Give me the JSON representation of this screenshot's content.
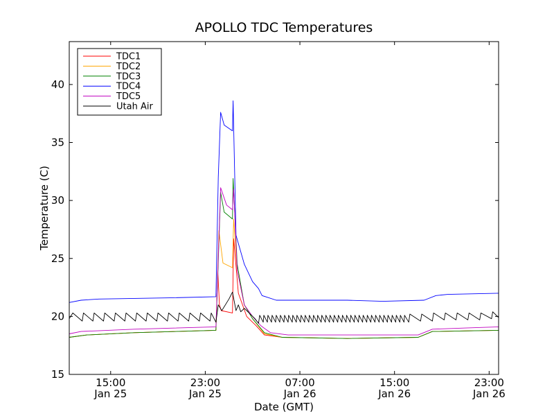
{
  "chart_data": {
    "type": "line",
    "title": "APOLLO TDC Temperatures",
    "xlabel": "Date (GMT)",
    "ylabel": "Temperature (C)",
    "x_units": "hours since Jan 25 00:00 GMT",
    "xlim": [
      11.5,
      47.8
    ],
    "ylim": [
      15,
      43.7
    ],
    "grid": false,
    "legend_position": "top-left",
    "x_ticks": [
      {
        "value": 15,
        "time": "15:00",
        "date": "Jan 25"
      },
      {
        "value": 23,
        "time": "23:00",
        "date": "Jan 25"
      },
      {
        "value": 31,
        "time": "07:00",
        "date": "Jan 26"
      },
      {
        "value": 39,
        "time": "15:00",
        "date": "Jan 26"
      },
      {
        "value": 47,
        "time": "23:00",
        "date": "Jan 26"
      }
    ],
    "y_ticks": [
      15,
      20,
      25,
      30,
      35,
      40
    ],
    "series": [
      {
        "name": "TDC1",
        "color": "#ff0000",
        "points": [
          [
            11.5,
            18.2
          ],
          [
            13,
            18.4
          ],
          [
            17,
            18.6
          ],
          [
            23.9,
            18.8
          ],
          [
            24.05,
            24.0
          ],
          [
            24.2,
            21.0
          ],
          [
            24.35,
            20.5
          ],
          [
            25.3,
            20.3
          ],
          [
            25.4,
            26.7
          ],
          [
            25.8,
            22.0
          ],
          [
            26.5,
            20.0
          ],
          [
            27.3,
            19.2
          ],
          [
            28,
            18.4
          ],
          [
            29.5,
            18.2
          ],
          [
            35,
            18.1
          ],
          [
            41,
            18.2
          ],
          [
            42.2,
            18.7
          ],
          [
            47.8,
            18.8
          ]
        ]
      },
      {
        "name": "TDC2",
        "color": "#ffa500",
        "points": [
          [
            11.5,
            18.2
          ],
          [
            13,
            18.4
          ],
          [
            17,
            18.6
          ],
          [
            23.9,
            18.8
          ],
          [
            24.15,
            27.4
          ],
          [
            24.5,
            24.6
          ],
          [
            25.3,
            24.2
          ],
          [
            25.4,
            28.4
          ],
          [
            25.7,
            24.0
          ],
          [
            26.3,
            21.0
          ],
          [
            27,
            19.8
          ],
          [
            28,
            18.5
          ],
          [
            29.5,
            18.2
          ],
          [
            35,
            18.1
          ],
          [
            41,
            18.2
          ],
          [
            42.2,
            18.7
          ],
          [
            47.8,
            18.8
          ]
        ]
      },
      {
        "name": "TDC3",
        "color": "#008000",
        "points": [
          [
            11.5,
            18.2
          ],
          [
            13,
            18.4
          ],
          [
            17,
            18.6
          ],
          [
            23.9,
            18.8
          ],
          [
            24.3,
            30.7
          ],
          [
            24.6,
            29.0
          ],
          [
            25.3,
            28.4
          ],
          [
            25.35,
            31.9
          ],
          [
            25.7,
            24.5
          ],
          [
            26.3,
            21.0
          ],
          [
            27,
            19.8
          ],
          [
            28,
            18.6
          ],
          [
            29.5,
            18.2
          ],
          [
            35,
            18.1
          ],
          [
            41,
            18.2
          ],
          [
            42.2,
            18.7
          ],
          [
            47.8,
            18.8
          ]
        ]
      },
      {
        "name": "TDC4",
        "color": "#0000ff",
        "points": [
          [
            11.5,
            21.2
          ],
          [
            12.5,
            21.4
          ],
          [
            14,
            21.5
          ],
          [
            20,
            21.6
          ],
          [
            23.9,
            21.7
          ],
          [
            24.1,
            32.0
          ],
          [
            24.3,
            37.6
          ],
          [
            24.6,
            36.5
          ],
          [
            25.3,
            36.0
          ],
          [
            25.35,
            38.6
          ],
          [
            25.6,
            27.0
          ],
          [
            26.3,
            24.5
          ],
          [
            27,
            23.0
          ],
          [
            27.5,
            22.4
          ],
          [
            27.8,
            21.8
          ],
          [
            29,
            21.4
          ],
          [
            35,
            21.4
          ],
          [
            38,
            21.3
          ],
          [
            41.5,
            21.4
          ],
          [
            42.5,
            21.8
          ],
          [
            43.5,
            21.9
          ],
          [
            47.8,
            22.0
          ]
        ]
      },
      {
        "name": "TDC5",
        "color": "#bf00bf",
        "points": [
          [
            11.5,
            18.5
          ],
          [
            12.5,
            18.7
          ],
          [
            17,
            18.9
          ],
          [
            23.9,
            19.1
          ],
          [
            24.3,
            31.1
          ],
          [
            24.8,
            29.6
          ],
          [
            25.3,
            29.2
          ],
          [
            25.4,
            31.0
          ],
          [
            25.7,
            24.0
          ],
          [
            26.3,
            21.0
          ],
          [
            27,
            20.0
          ],
          [
            27.7,
            19.2
          ],
          [
            28.5,
            18.6
          ],
          [
            30,
            18.4
          ],
          [
            41,
            18.4
          ],
          [
            42.2,
            18.9
          ],
          [
            45,
            19.0
          ],
          [
            47.8,
            19.1
          ]
        ]
      },
      {
        "name": "Utah Air",
        "color": "#000000",
        "points": [
          [
            11.5,
            19.8
          ],
          [
            11.8,
            20.3
          ],
          [
            12.6,
            19.6
          ],
          [
            12.7,
            20.3
          ],
          [
            13.5,
            19.6
          ],
          [
            13.6,
            20.3
          ],
          [
            14.4,
            19.6
          ],
          [
            14.5,
            20.3
          ],
          [
            15.3,
            19.6
          ],
          [
            15.4,
            20.3
          ],
          [
            16.2,
            19.6
          ],
          [
            16.3,
            20.3
          ],
          [
            17.1,
            19.6
          ],
          [
            17.2,
            20.3
          ],
          [
            18.0,
            19.6
          ],
          [
            18.1,
            20.3
          ],
          [
            18.9,
            19.6
          ],
          [
            19.0,
            20.3
          ],
          [
            19.8,
            19.6
          ],
          [
            19.9,
            20.3
          ],
          [
            20.7,
            19.6
          ],
          [
            20.8,
            20.3
          ],
          [
            21.6,
            19.6
          ],
          [
            21.7,
            20.3
          ],
          [
            22.5,
            19.6
          ],
          [
            22.6,
            20.3
          ],
          [
            23.4,
            19.6
          ],
          [
            23.5,
            20.3
          ],
          [
            23.9,
            19.5
          ],
          [
            24.1,
            21.0
          ],
          [
            24.4,
            20.5
          ],
          [
            25.0,
            21.5
          ],
          [
            25.3,
            22.1
          ],
          [
            25.6,
            20.5
          ],
          [
            25.8,
            21.0
          ],
          [
            26.0,
            20.4
          ],
          [
            26.3,
            20.7
          ],
          [
            27.2,
            19.8
          ],
          [
            27.5,
            19.4
          ],
          [
            27.6,
            20.1
          ],
          [
            27.9,
            19.5
          ],
          [
            27.95,
            20.1
          ],
          [
            28.25,
            19.5
          ],
          [
            28.3,
            20.1
          ],
          [
            28.6,
            19.5
          ],
          [
            28.65,
            20.1
          ],
          [
            28.95,
            19.5
          ],
          [
            29.0,
            20.1
          ],
          [
            29.3,
            19.5
          ],
          [
            29.35,
            20.1
          ],
          [
            29.65,
            19.5
          ],
          [
            29.7,
            20.1
          ],
          [
            30.0,
            19.5
          ],
          [
            30.05,
            20.1
          ],
          [
            30.35,
            19.5
          ],
          [
            30.4,
            20.1
          ],
          [
            30.7,
            19.5
          ],
          [
            30.75,
            20.1
          ],
          [
            31.05,
            19.5
          ],
          [
            31.1,
            20.1
          ],
          [
            31.4,
            19.5
          ],
          [
            31.45,
            20.1
          ],
          [
            31.75,
            19.5
          ],
          [
            31.8,
            20.1
          ],
          [
            32.1,
            19.5
          ],
          [
            32.15,
            20.1
          ],
          [
            32.45,
            19.5
          ],
          [
            32.5,
            20.1
          ],
          [
            32.8,
            19.5
          ],
          [
            32.85,
            20.1
          ],
          [
            33.15,
            19.5
          ],
          [
            33.2,
            20.1
          ],
          [
            33.5,
            19.5
          ],
          [
            33.55,
            20.1
          ],
          [
            33.85,
            19.5
          ],
          [
            33.9,
            20.1
          ],
          [
            34.2,
            19.5
          ],
          [
            34.25,
            20.1
          ],
          [
            34.55,
            19.5
          ],
          [
            34.6,
            20.1
          ],
          [
            34.9,
            19.5
          ],
          [
            34.95,
            20.1
          ],
          [
            35.25,
            19.5
          ],
          [
            35.3,
            20.1
          ],
          [
            35.6,
            19.5
          ],
          [
            35.65,
            20.1
          ],
          [
            35.95,
            19.5
          ],
          [
            36.0,
            20.1
          ],
          [
            36.3,
            19.5
          ],
          [
            36.35,
            20.1
          ],
          [
            36.65,
            19.5
          ],
          [
            36.7,
            20.1
          ],
          [
            37.0,
            19.5
          ],
          [
            37.05,
            20.1
          ],
          [
            37.35,
            19.5
          ],
          [
            37.4,
            20.1
          ],
          [
            37.7,
            19.5
          ],
          [
            37.75,
            20.1
          ],
          [
            38.05,
            19.5
          ],
          [
            38.1,
            20.1
          ],
          [
            38.4,
            19.5
          ],
          [
            38.45,
            20.1
          ],
          [
            38.75,
            19.5
          ],
          [
            38.8,
            20.1
          ],
          [
            39.1,
            19.5
          ],
          [
            39.15,
            20.1
          ],
          [
            39.45,
            19.5
          ],
          [
            39.5,
            20.1
          ],
          [
            39.8,
            19.5
          ],
          [
            39.85,
            20.1
          ],
          [
            40.2,
            19.5
          ],
          [
            40.3,
            20.2
          ],
          [
            41.2,
            19.6
          ],
          [
            41.3,
            20.2
          ],
          [
            42.2,
            19.6
          ],
          [
            42.3,
            20.3
          ],
          [
            43.2,
            19.7
          ],
          [
            43.3,
            20.3
          ],
          [
            44.2,
            19.7
          ],
          [
            44.3,
            20.3
          ],
          [
            45.2,
            19.7
          ],
          [
            45.3,
            20.3
          ],
          [
            46.2,
            19.7
          ],
          [
            46.3,
            20.3
          ],
          [
            47.2,
            19.8
          ],
          [
            47.3,
            20.4
          ],
          [
            47.8,
            19.9
          ]
        ]
      }
    ]
  }
}
